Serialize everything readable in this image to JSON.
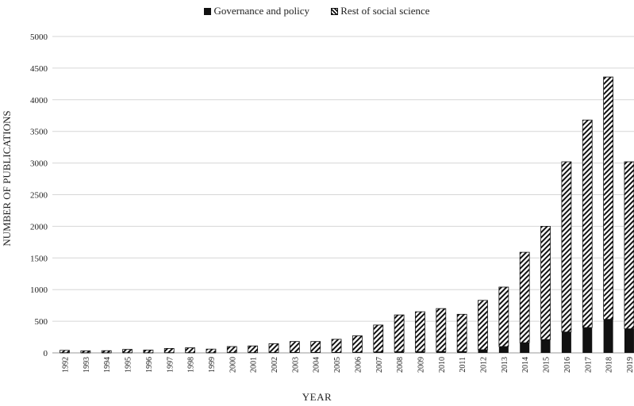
{
  "chart_data": {
    "type": "bar",
    "stacked": true,
    "xlabel": "YEAR",
    "ylabel": "NUMBER OF PUBLICATIONS",
    "ylim": [
      0,
      5000
    ],
    "yticks": [
      0,
      500,
      1000,
      1500,
      2000,
      2500,
      3000,
      3500,
      4000,
      4500,
      5000
    ],
    "grid": true,
    "legend_position": "top-center",
    "categories": [
      "1992",
      "1993",
      "1994",
      "1995",
      "1996",
      "1997",
      "1998",
      "1999",
      "2000",
      "2001",
      "2002",
      "2003",
      "2004",
      "2005",
      "2006",
      "2007",
      "2008",
      "2009",
      "2010",
      "2011",
      "2012",
      "2013",
      "2014",
      "2015",
      "2016",
      "2017",
      "2018",
      "2019"
    ],
    "series": [
      {
        "name": "Governance and policy",
        "fill": "solid",
        "color": "#111111",
        "values": [
          3,
          2,
          2,
          3,
          2,
          4,
          4,
          3,
          5,
          5,
          6,
          8,
          8,
          8,
          10,
          15,
          18,
          18,
          20,
          20,
          50,
          100,
          160,
          210,
          330,
          400,
          530,
          380
        ]
      },
      {
        "name": "Rest of social science",
        "fill": "hatched",
        "color": "#111111",
        "values": [
          37,
          30,
          33,
          52,
          43,
          66,
          76,
          57,
          95,
          105,
          139,
          172,
          172,
          207,
          260,
          425,
          582,
          632,
          680,
          590,
          780,
          940,
          1430,
          1790,
          2690,
          3280,
          3830,
          2640
        ]
      }
    ]
  }
}
